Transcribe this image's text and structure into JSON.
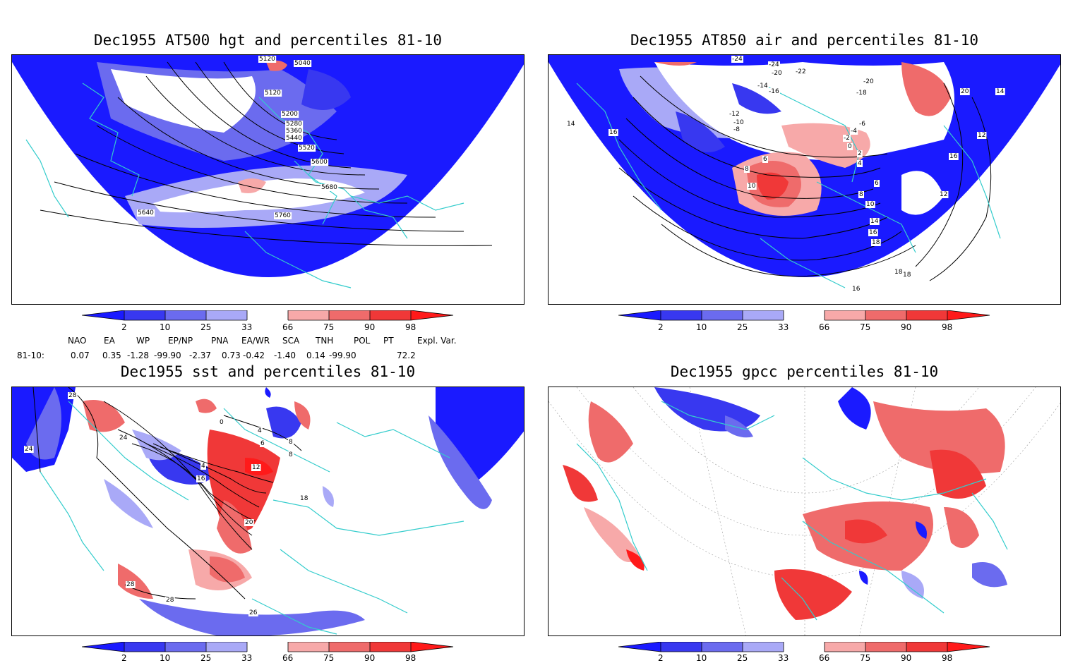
{
  "panels": [
    {
      "title": "Dec1955 AT500 hgt and percentiles 81-10",
      "contour_labels": [
        "5120",
        "5040",
        "5120",
        "5200",
        "5280",
        "5360",
        "5440",
        "5520",
        "5600",
        "5680",
        "5760",
        "5640"
      ]
    },
    {
      "title": "Dec1955 AT850 air and percentiles 81-10",
      "contour_labels": [
        "-24",
        "-24",
        "-22",
        "-20",
        "-20",
        "-18",
        "-16",
        "-14",
        "-12",
        "-10",
        "-8",
        "-6",
        "-4",
        "-2",
        "0",
        "2",
        "4",
        "6",
        "8",
        "10",
        "12",
        "14",
        "16",
        "18",
        "20",
        "14",
        "16",
        "18",
        "12",
        "14",
        "16",
        "16",
        "18",
        "10",
        "8",
        "6"
      ]
    },
    {
      "title": "Dec1955 sst and percentiles 81-10",
      "contour_labels": [
        "28",
        "24",
        "24",
        "16",
        "12",
        "8",
        "4",
        "0",
        "20",
        "28",
        "28",
        "26",
        "18",
        "4",
        "6",
        "8"
      ]
    },
    {
      "title": "Dec1955 gpcc percentiles 81-10",
      "contour_labels": []
    }
  ],
  "colorbar": {
    "labels": [
      "2",
      "10",
      "25",
      "33",
      "66",
      "75",
      "90",
      "98"
    ],
    "colors": {
      "low": [
        "#1a1aff",
        "#3838f0",
        "#6b6bef",
        "#a9a9f7"
      ],
      "high": [
        "#f7a9a9",
        "#ef6b6b",
        "#f03838",
        "#ff1a1a"
      ]
    }
  },
  "indices": {
    "header": [
      "NAO",
      "EA",
      "WP",
      "EP/NP",
      "PNA",
      "EA/WR",
      "SCA",
      "TNH",
      "POL",
      "PT",
      "Expl. Var."
    ],
    "row_label": "81-10:",
    "values": [
      "0.07",
      "0.35",
      "-1.28",
      "-99.90",
      "-2.37",
      "0.73",
      "-0.42",
      "-1.40",
      "0.14",
      "-99.90",
      "72.2"
    ]
  }
}
